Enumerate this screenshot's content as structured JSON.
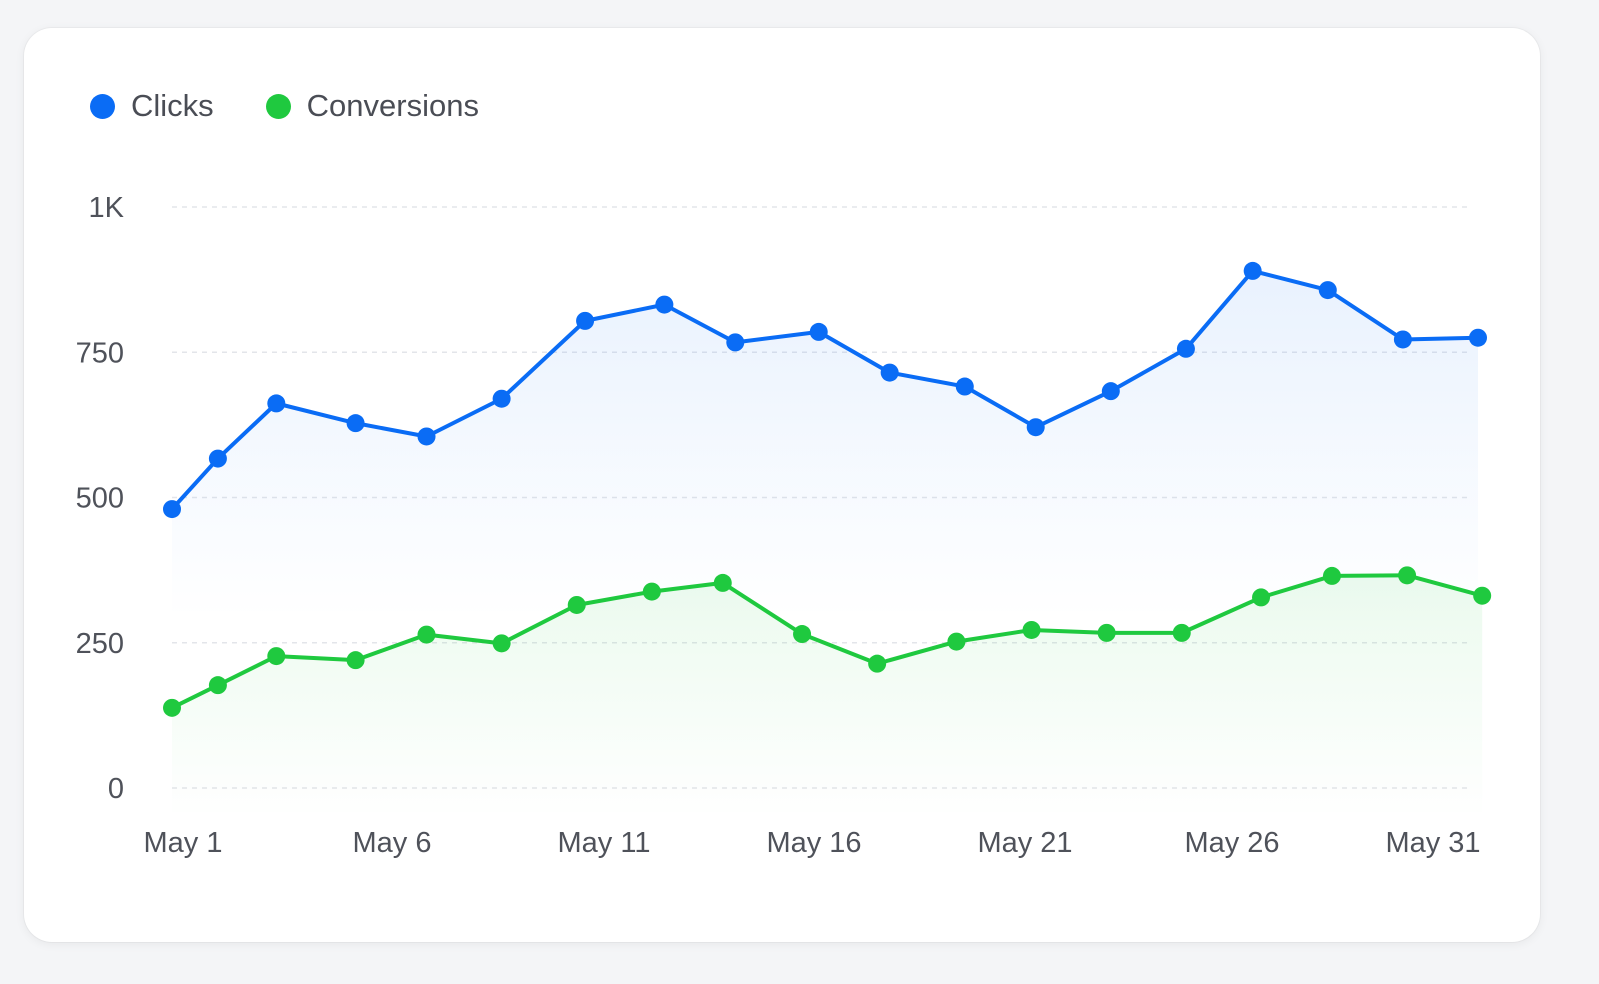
{
  "legend": {
    "items": [
      {
        "label": "Clicks",
        "color": "#0a6cf5"
      },
      {
        "label": "Conversions",
        "color": "#1fc93f"
      }
    ]
  },
  "chart_data": {
    "type": "line",
    "x_tick_labels": [
      "May 1",
      "May 6",
      "May 11",
      "May 16",
      "May 21",
      "May 26",
      "May 31"
    ],
    "y_tick_labels": [
      "0",
      "250",
      "500",
      "750",
      "1K"
    ],
    "y_ticks": [
      0,
      250,
      500,
      750,
      1000
    ],
    "ylim": [
      0,
      1000
    ],
    "grid": true,
    "grid_style": "dashed",
    "legend_position": "top-left",
    "series": [
      {
        "name": "Clicks",
        "color": "#0a6cf5",
        "area_fill": true,
        "points": [
          {
            "x": 1,
            "y": 480
          },
          {
            "x": 2.1,
            "y": 567
          },
          {
            "x": 3.5,
            "y": 662
          },
          {
            "x": 5.4,
            "y": 628
          },
          {
            "x": 7.1,
            "y": 605
          },
          {
            "x": 8.9,
            "y": 670
          },
          {
            "x": 10.9,
            "y": 804
          },
          {
            "x": 12.8,
            "y": 832
          },
          {
            "x": 14.5,
            "y": 767
          },
          {
            "x": 16.5,
            "y": 785
          },
          {
            "x": 18.2,
            "y": 715
          },
          {
            "x": 20,
            "y": 691
          },
          {
            "x": 21.7,
            "y": 621
          },
          {
            "x": 23.5,
            "y": 683
          },
          {
            "x": 25.3,
            "y": 756
          },
          {
            "x": 26.9,
            "y": 890
          },
          {
            "x": 28.7,
            "y": 857
          },
          {
            "x": 30.5,
            "y": 772
          },
          {
            "x": 32.3,
            "y": 775
          }
        ]
      },
      {
        "name": "Conversions",
        "color": "#1fc93f",
        "area_fill": true,
        "points": [
          {
            "x": 1,
            "y": 138
          },
          {
            "x": 2.1,
            "y": 177
          },
          {
            "x": 3.5,
            "y": 227
          },
          {
            "x": 5.4,
            "y": 220
          },
          {
            "x": 7.1,
            "y": 264
          },
          {
            "x": 8.9,
            "y": 249
          },
          {
            "x": 10.7,
            "y": 315
          },
          {
            "x": 12.5,
            "y": 338
          },
          {
            "x": 14.2,
            "y": 353
          },
          {
            "x": 16.1,
            "y": 265
          },
          {
            "x": 17.9,
            "y": 214
          },
          {
            "x": 19.8,
            "y": 252
          },
          {
            "x": 21.6,
            "y": 272
          },
          {
            "x": 23.4,
            "y": 267
          },
          {
            "x": 25.2,
            "y": 267
          },
          {
            "x": 27.1,
            "y": 328
          },
          {
            "x": 28.8,
            "y": 365
          },
          {
            "x": 30.6,
            "y": 366
          },
          {
            "x": 32.4,
            "y": 331
          }
        ]
      }
    ]
  }
}
